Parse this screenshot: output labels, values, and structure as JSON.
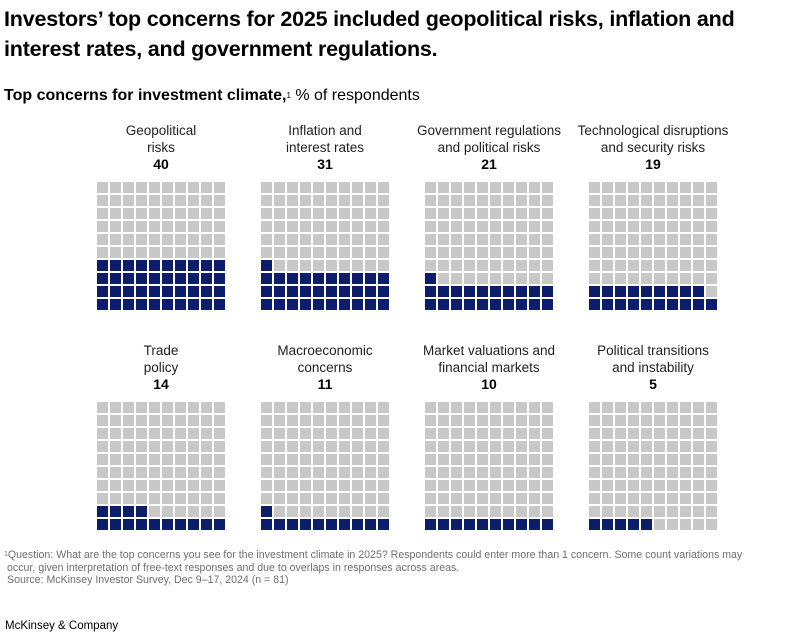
{
  "headline": "Investors’ top concerns for 2025 included geopolitical risks, inflation and interest rates, and government regulations.",
  "subtitle": {
    "bold": "Top concerns for investment climate,",
    "footnote_mark": "1",
    "unit": " % of respondents"
  },
  "colors": {
    "filled": "#0c1d6b",
    "empty": "#c8c8c8"
  },
  "chart_data": {
    "type": "waffle",
    "title": "Top concerns for investment climate",
    "unit": "% of respondents",
    "grid": [
      10,
      10
    ],
    "fill_order": "bottom-up, left-to-right",
    "categories": [
      "Geopolitical risks",
      "Inflation and interest rates",
      "Government regulations and political risks",
      "Technological disruptions and security risks",
      "Trade policy",
      "Macroeconomic concerns",
      "Market valuations and financial markets",
      "Political transitions and instability"
    ],
    "values": [
      40,
      31,
      21,
      19,
      14,
      11,
      10,
      5
    ],
    "panels": [
      {
        "label": "Geopolitical\nrisks",
        "value": 40
      },
      {
        "label": "Inflation and\ninterest rates",
        "value": 31
      },
      {
        "label": "Government regulations\nand political risks",
        "value": 21
      },
      {
        "label": "Technological disruptions\nand security risks",
        "value": 19
      },
      {
        "label": "Trade\npolicy",
        "value": 14
      },
      {
        "label": "Macroeconomic\nconcerns",
        "value": 11
      },
      {
        "label": "Market valuations and\nfinancial markets",
        "value": 10
      },
      {
        "label": "Political transitions\nand instability",
        "value": 5
      }
    ]
  },
  "footnote": {
    "mark": "1",
    "line1": "Question: What are the top concerns you see for the investment climate in 2025? Respondents could enter more than 1 concern. Some count variations may",
    "line2": "occur, given interpretation of free-text responses and due to overlaps in responses across areas.",
    "source": "Source: McKinsey Investor Survey, Dec 9–17, 2024 (n = 81)"
  },
  "brand": "McKinsey & Company"
}
